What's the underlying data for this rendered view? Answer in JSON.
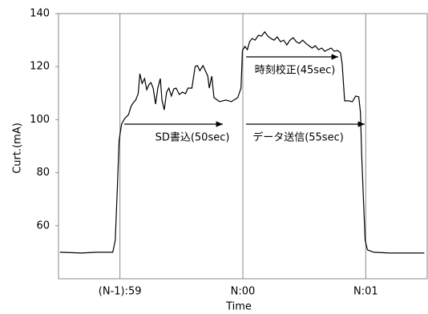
{
  "chart_data": {
    "type": "line",
    "xlabel": "Time",
    "ylabel": "Curt.(mA)",
    "xlim": [
      -30,
      150
    ],
    "ylim": [
      40,
      140
    ],
    "xticks": [
      {
        "value": 0,
        "label": "(N-1):59"
      },
      {
        "value": 60,
        "label": "N:00"
      },
      {
        "value": 120,
        "label": "N:01"
      }
    ],
    "yticks": [
      60,
      80,
      100,
      120,
      140
    ],
    "grid": true,
    "annotations": [
      {
        "text": "SD書込(50sec)"
      },
      {
        "text": "データ送信(55sec)"
      },
      {
        "text": "時刻校正(45sec)"
      }
    ],
    "series": [
      {
        "color": "#000000",
        "x": [
          -29.3,
          -18.9,
          -11.2,
          -3.5,
          -2.3,
          -1.2,
          -0.4,
          0.8,
          2.3,
          4.2,
          5.4,
          6.6,
          7.7,
          8.9,
          9.7,
          10.8,
          12.0,
          13.1,
          14.3,
          15.1,
          16.2,
          17.4,
          18.5,
          19.7,
          20.5,
          21.6,
          22.8,
          23.9,
          25.1,
          26.3,
          27.4,
          29.0,
          30.5,
          32.0,
          33.2,
          35.1,
          36.7,
          37.8,
          39.0,
          40.5,
          41.7,
          42.9,
          43.6,
          44.8,
          45.9,
          48.6,
          51.7,
          54.4,
          57.5,
          59.1,
          59.8,
          61.0,
          62.2,
          63.3,
          64.5,
          66.0,
          67.6,
          69.1,
          70.7,
          72.2,
          73.7,
          75.3,
          76.8,
          78.4,
          79.9,
          81.5,
          83.0,
          84.6,
          86.1,
          87.6,
          89.2,
          90.7,
          92.3,
          93.8,
          95.4,
          96.9,
          98.5,
          100.0,
          101.5,
          103.1,
          104.6,
          106.2,
          107.7,
          108.5,
          109.7,
          111.6,
          113.5,
          115.1,
          116.6,
          117.4,
          118.1,
          118.9,
          119.7,
          120.8,
          123.9,
          131.7,
          139.4,
          148.6
        ],
        "values": [
          50.0,
          49.7,
          50.0,
          50.0,
          54.5,
          75.6,
          92.3,
          98.3,
          100.4,
          101.9,
          105.0,
          106.5,
          107.4,
          109.8,
          117.3,
          113.7,
          115.5,
          111.3,
          113.4,
          114.0,
          111.9,
          105.9,
          111.9,
          115.5,
          107.4,
          103.7,
          110.4,
          111.9,
          108.9,
          111.6,
          111.9,
          109.5,
          110.4,
          109.8,
          111.9,
          111.9,
          120.1,
          120.4,
          118.5,
          120.4,
          118.5,
          116.4,
          111.9,
          116.4,
          108.3,
          106.8,
          107.4,
          106.8,
          108.3,
          111.9,
          126.1,
          127.6,
          126.4,
          129.4,
          130.6,
          130.0,
          131.8,
          131.5,
          133.1,
          131.5,
          130.6,
          130.0,
          131.2,
          129.4,
          130.0,
          128.2,
          130.0,
          130.9,
          129.4,
          128.8,
          130.0,
          128.8,
          127.9,
          127.0,
          127.9,
          126.4,
          127.0,
          125.8,
          126.4,
          127.0,
          125.8,
          126.1,
          125.2,
          121.0,
          107.1,
          107.1,
          106.8,
          108.9,
          108.6,
          102.8,
          84.7,
          69.6,
          54.5,
          50.9,
          50.0,
          49.7,
          49.7,
          49.7
        ]
      }
    ]
  }
}
